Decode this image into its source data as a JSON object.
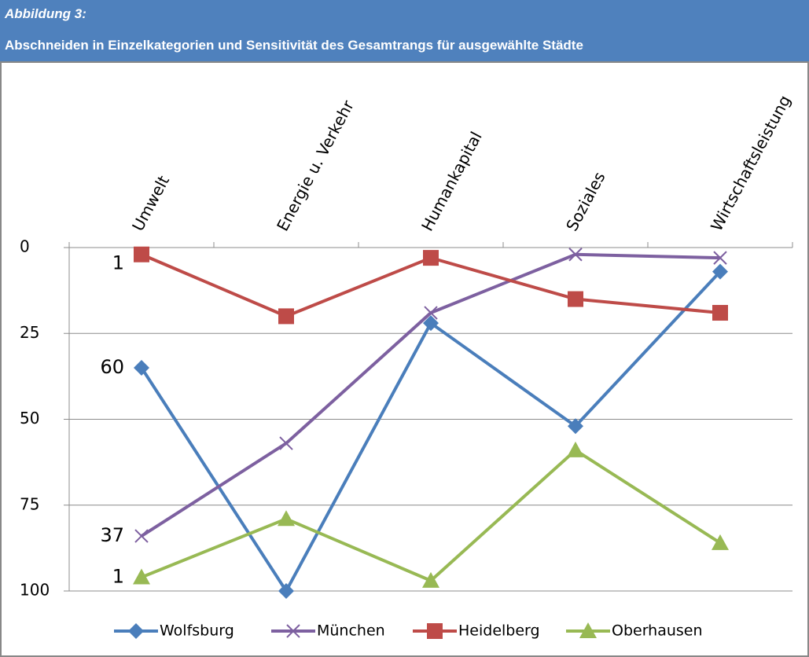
{
  "header": {
    "label": "Abbildung 3:",
    "title": "Abschneiden in Einzelkategorien und Sensitivität des Gesamtrangs für ausgewählte Städte"
  },
  "chart_data": {
    "type": "line",
    "categories": [
      "Umwelt",
      "Energie u. Verkehr",
      "Humankapital",
      "Soziales",
      "Wirtschaftsleistung"
    ],
    "series": [
      {
        "name": "Wolfsburg",
        "color": "#4a7ebb",
        "marker": "diamond",
        "values": [
          35,
          100,
          22,
          52,
          7
        ]
      },
      {
        "name": "München",
        "color": "#7d60a0",
        "marker": "x",
        "values": [
          84,
          57,
          19,
          2,
          3
        ]
      },
      {
        "name": "Heidelberg",
        "color": "#be4b48",
        "marker": "square",
        "values": [
          2,
          20,
          3,
          15,
          19
        ]
      },
      {
        "name": "Oberhausen",
        "color": "#98b954",
        "marker": "triangle",
        "values": [
          96,
          79,
          97,
          59,
          86
        ]
      }
    ],
    "annotations": [
      "1",
      "60",
      "37",
      "1"
    ],
    "ylim": [
      0,
      100
    ],
    "y_inverted": true,
    "yticks": [
      0,
      25,
      50,
      75,
      100
    ],
    "grid": true,
    "legend": "bottom"
  }
}
